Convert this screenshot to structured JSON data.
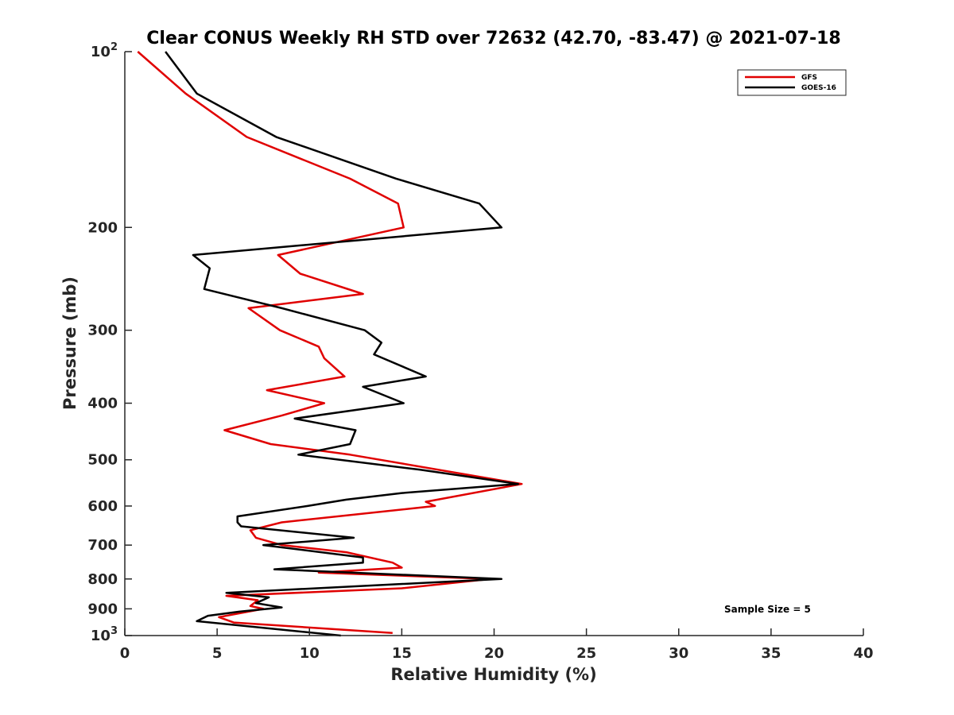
{
  "chart_data": {
    "type": "line",
    "title": "Clear CONUS Weekly RH STD over 72632 (42.70, -83.47) @ 2021-07-18",
    "xlabel": "Relative Humidity (%)",
    "ylabel": "Pressure (mb)",
    "xlim": [
      0,
      40
    ],
    "ylim": [
      100,
      1000
    ],
    "y_scale": "log",
    "y_reversed": true,
    "grid": false,
    "legend_position": "top-right",
    "x_ticks": [
      "0",
      "5",
      "10",
      "15",
      "20",
      "25",
      "30",
      "35",
      "40"
    ],
    "y_ticks": [
      {
        "value": 100,
        "base": "10",
        "exp": "2"
      },
      {
        "value": 200,
        "label": "200"
      },
      {
        "value": 300,
        "label": "300"
      },
      {
        "value": 400,
        "label": "400"
      },
      {
        "value": 500,
        "label": "500"
      },
      {
        "value": 600,
        "label": "600"
      },
      {
        "value": 700,
        "label": "700"
      },
      {
        "value": 800,
        "label": "800"
      },
      {
        "value": 900,
        "label": "900"
      },
      {
        "value": 1000,
        "base": "10",
        "exp": "3"
      }
    ],
    "annotation": "Sample Size = 5",
    "series": [
      {
        "name": "GFS",
        "color": "#e00000",
        "points": [
          [
            0.7,
            100
          ],
          [
            3.3,
            118
          ],
          [
            6.6,
            140
          ],
          [
            12.2,
            165
          ],
          [
            14.8,
            182
          ],
          [
            15.1,
            200
          ],
          [
            8.3,
            223
          ],
          [
            9.5,
            240
          ],
          [
            12.9,
            260
          ],
          [
            6.7,
            275
          ],
          [
            8.4,
            300
          ],
          [
            10.5,
            320
          ],
          [
            10.8,
            335
          ],
          [
            11.9,
            360
          ],
          [
            7.7,
            380
          ],
          [
            10.8,
            400
          ],
          [
            8.5,
            420
          ],
          [
            5.4,
            445
          ],
          [
            7.9,
            470
          ],
          [
            12.2,
            490
          ],
          [
            21.5,
            550
          ],
          [
            16.3,
            590
          ],
          [
            16.8,
            600
          ],
          [
            8.5,
            640
          ],
          [
            6.8,
            660
          ],
          [
            7.1,
            680
          ],
          [
            8.5,
            700
          ],
          [
            12.0,
            720
          ],
          [
            14.5,
            750
          ],
          [
            15.0,
            765
          ],
          [
            10.5,
            780
          ],
          [
            19.8,
            800
          ],
          [
            15.0,
            830
          ],
          [
            5.5,
            855
          ],
          [
            7.2,
            870
          ],
          [
            6.8,
            890
          ],
          [
            7.5,
            900
          ],
          [
            5.1,
            930
          ],
          [
            5.9,
            950
          ],
          [
            14.5,
            990
          ]
        ]
      },
      {
        "name": "GOES-16",
        "color": "#000000",
        "points": [
          [
            2.2,
            100
          ],
          [
            3.9,
            118
          ],
          [
            8.2,
            140
          ],
          [
            14.7,
            165
          ],
          [
            19.2,
            182
          ],
          [
            20.4,
            200
          ],
          [
            3.7,
            223
          ],
          [
            4.6,
            235
          ],
          [
            4.3,
            255
          ],
          [
            8.5,
            275
          ],
          [
            13.0,
            300
          ],
          [
            13.9,
            315
          ],
          [
            13.5,
            330
          ],
          [
            16.3,
            360
          ],
          [
            12.9,
            375
          ],
          [
            15.1,
            400
          ],
          [
            9.2,
            425
          ],
          [
            12.5,
            445
          ],
          [
            12.2,
            470
          ],
          [
            9.4,
            490
          ],
          [
            16.0,
            520
          ],
          [
            21.3,
            550
          ],
          [
            15.0,
            570
          ],
          [
            12.0,
            585
          ],
          [
            9.9,
            600
          ],
          [
            6.1,
            625
          ],
          [
            6.1,
            640
          ],
          [
            6.3,
            650
          ],
          [
            12.4,
            680
          ],
          [
            7.5,
            700
          ],
          [
            12.9,
            735
          ],
          [
            12.9,
            750
          ],
          [
            8.1,
            770
          ],
          [
            20.4,
            800
          ],
          [
            5.5,
            845
          ],
          [
            7.8,
            860
          ],
          [
            7.1,
            880
          ],
          [
            8.5,
            895
          ],
          [
            6.2,
            910
          ],
          [
            4.5,
            925
          ],
          [
            3.9,
            945
          ],
          [
            11.7,
            1000
          ]
        ]
      }
    ]
  }
}
